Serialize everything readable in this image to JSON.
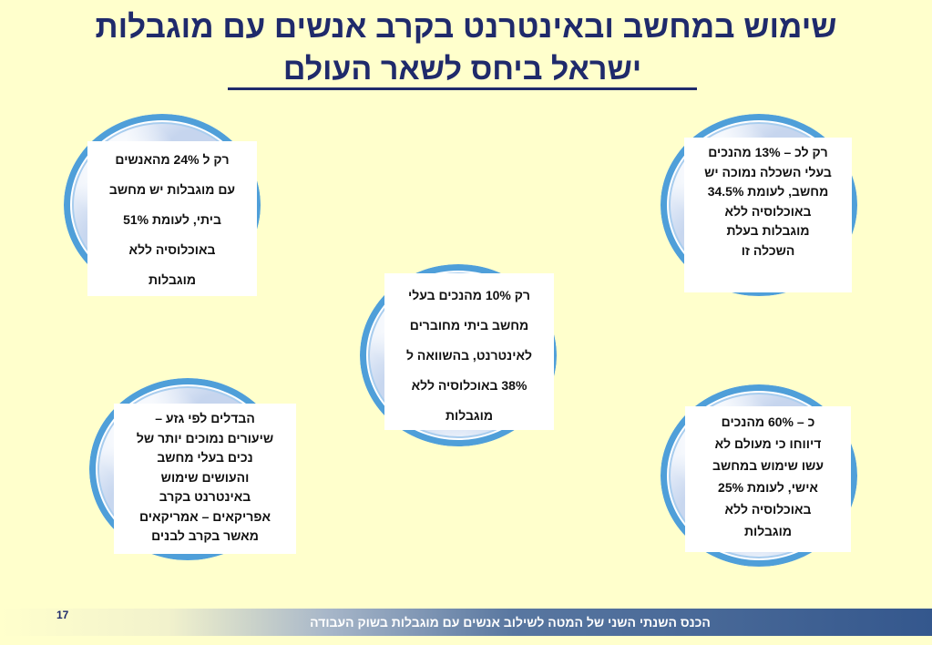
{
  "title": {
    "line1": "שימוש במחשב ובאינטרנט בקרב אנשים עם מוגבלות",
    "line2": "ישראל ביחס לשאר העולם"
  },
  "facts": {
    "top_left": [
      "רק ל 24% מהאנשים",
      "עם מוגבלות יש מחשב",
      "ביתי, לעומת 51%",
      "באוכלוסיה ללא",
      "מוגבלות"
    ],
    "top_right": [
      "רק לכ – 13% מהנכים",
      "בעלי השכלה נמוכה יש",
      "מחשב, לעומת 34.5%",
      "באוכלוסיה ללא",
      "מוגבלות בעלת",
      "השכלה זו"
    ],
    "center": [
      "רק 10% מהנכים בעלי",
      "מחשב ביתי מחוברים",
      "לאינטרנט, בהשוואה ל",
      "38% באוכלוסיה ללא",
      "מוגבלות"
    ],
    "bottom_left": [
      "הבדלים לפי גזע –",
      "שיעורים נמוכים יותר של",
      "נכים בעלי מחשב",
      "והעושים שימוש",
      "באינטרנט בקרב",
      "אפריקאים – אמריקאים",
      "מאשר בקרב לבנים"
    ],
    "bottom_right": [
      "כ – 60% מהנכים",
      "דיווחו כי מעולם לא",
      "עשו שימוש במחשב",
      "אישי, לעומת 25%",
      "באוכלוסיה ללא",
      "מוגבלות"
    ]
  },
  "footer": {
    "text": "הכנס השנתי השני של המטה לשילוב אנשים עם מוגבלות בשוק העבודה",
    "page_number": "17"
  },
  "colors": {
    "background": "#ffffcc",
    "title": "#1f2a6b",
    "globe_ring": "#4f9fd9",
    "footer_bar": "#34578d"
  }
}
